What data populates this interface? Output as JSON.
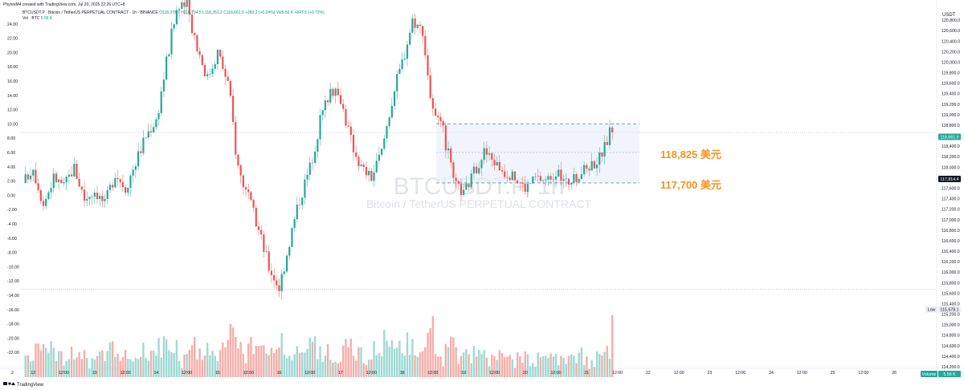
{
  "watermark_top": "PhyresM4 created with TradingView.com, Jul 20, 2025 22:26 UTC+8",
  "header": {
    "line1_symbol": "BTCUSDT.P · Bitcoin / TetherUS PERPETUAL CONTRACT · 1h · BINANCE",
    "ohlc": "O118,378.7 H118,794.5 L118,351.2 C118,661.9 +283.2 (+0.24%) Vol5.56 K +847.5 (+0.72%)",
    "line2": "Vol · BTC",
    "line2_value": "5.56 K"
  },
  "watermark": {
    "symbol": "BTCUSDT.P, 1h",
    "subtitle": "Bitcoin / TetherUS PERPETUAL CONTRACT"
  },
  "annotations": {
    "upper_label": "118,825 美元",
    "lower_label": "117,700 美元",
    "upper_value": 118825,
    "lower_value": 117700
  },
  "axis_badges": {
    "currency": "USDT",
    "last_price": "118,661.9",
    "bid_price": "117,814.4",
    "low_label": "Low",
    "low_price": "115,678.1",
    "volume_label": "Volume",
    "volume_value": "5.56 K"
  },
  "footer": {
    "brand": "TradingView"
  },
  "colors": {
    "up": "#26a69a",
    "down": "#ef5350",
    "vol_up": "#9fd9d2",
    "vol_down": "#f5aeaa",
    "annotation": "#f7931a",
    "guide": "#6a8cc4"
  },
  "chart_data": {
    "type": "candlestick",
    "interval": "1h",
    "y_right": {
      "min": 114200,
      "max": 121000,
      "ticks": [
        114200,
        114400,
        114600,
        114800,
        115000,
        115200,
        115400,
        115600,
        115800,
        116000,
        116200,
        116400,
        116600,
        116800,
        117000,
        117200,
        117400,
        117600,
        117800,
        118000,
        118200,
        118400,
        118600,
        118800,
        119000,
        119200,
        119400,
        119600,
        119800,
        120000,
        120200,
        120400,
        120600,
        120800
      ],
      "tick_labels": [
        "114,200.0",
        "114,400.0",
        "114,600.0",
        "114,800.0",
        "115,000.0",
        "115,200.0",
        "115,400.0",
        "115,600.0",
        "115,800.0",
        "116,000.0",
        "116,200.0",
        "116,400.0",
        "116,600.0",
        "116,800.0",
        "117,000.0",
        "117,200.0",
        "117,400.0",
        "117,600.0",
        "117,800.0",
        "118,000.0",
        "118,200.0",
        "118,400.0",
        "118,600.0",
        "118,800.0",
        "119,000.0",
        "119,200.0",
        "119,400.0",
        "119,600.0",
        "119,800.0",
        "120,000.0",
        "120,200.0",
        "120,400.0",
        "120,600.0",
        "120,800.0"
      ]
    },
    "y_left": {
      "min": -24,
      "max": 26,
      "ticks": [
        -22,
        -20,
        -18,
        -16,
        -14,
        -12,
        -10,
        -8,
        -6,
        -4,
        -2,
        0,
        2,
        4,
        6,
        8,
        10,
        12,
        14,
        16,
        18,
        20,
        22,
        24
      ],
      "tick_labels": [
        "-22.00",
        "-20.00",
        "-18.00",
        "-16.00",
        "-14.00",
        "-12.00",
        "-10.00",
        "-8.00",
        "-6.00",
        "-4.00",
        "-2.00",
        "0.00",
        "2.00",
        "4.00",
        "6.00",
        "8.00",
        "10.00",
        "12.00",
        "14.00",
        "16.00",
        "18.00",
        "20.00",
        "22.00",
        "24.00"
      ]
    },
    "x_axis": {
      "first_hour": 44,
      "last_hour": 274,
      "ticks": [
        {
          "hour": 48,
          "label": "12"
        },
        {
          "hour": 60,
          "label": "12:00"
        },
        {
          "hour": 72,
          "label": "13"
        },
        {
          "hour": 84,
          "label": "12:00"
        },
        {
          "hour": 96,
          "label": "14"
        },
        {
          "hour": 108,
          "label": "12:00"
        },
        {
          "hour": 120,
          "label": "15"
        },
        {
          "hour": 132,
          "label": "12:00"
        },
        {
          "hour": 144,
          "label": "16"
        },
        {
          "hour": 156,
          "label": "12:00"
        },
        {
          "hour": 168,
          "label": "17"
        },
        {
          "hour": 180,
          "label": "12:00"
        },
        {
          "hour": 192,
          "label": "18"
        },
        {
          "hour": 204,
          "label": "12:00"
        },
        {
          "hour": 216,
          "label": "19"
        },
        {
          "hour": 228,
          "label": "12:00"
        },
        {
          "hour": 240,
          "label": "20"
        },
        {
          "hour": 252,
          "label": "12:00"
        },
        {
          "hour": 264,
          "label": "21"
        },
        {
          "hour": 276,
          "label": "12:00"
        },
        {
          "hour": 288,
          "label": "22"
        },
        {
          "hour": 300,
          "label": "12:00"
        },
        {
          "hour": 312,
          "label": "23"
        },
        {
          "hour": 324,
          "label": "12:00"
        },
        {
          "hour": 336,
          "label": "24"
        },
        {
          "hour": 348,
          "label": "12:00"
        },
        {
          "hour": 360,
          "label": "25"
        },
        {
          "hour": 372,
          "label": "12:00"
        },
        {
          "hour": 384,
          "label": "26"
        },
        {
          "hour": 396,
          "label": "12:00"
        }
      ],
      "left_edge_label": "2"
    },
    "volume_max": 6.6,
    "close_path": [
      [
        44,
        117700
      ],
      [
        48,
        118000
      ],
      [
        52,
        117300
      ],
      [
        56,
        117800
      ],
      [
        60,
        117650
      ],
      [
        64,
        118000
      ],
      [
        68,
        117400
      ],
      [
        72,
        117550
      ],
      [
        76,
        117300
      ],
      [
        80,
        117900
      ],
      [
        84,
        117600
      ],
      [
        88,
        118100
      ],
      [
        92,
        118600
      ],
      [
        96,
        118900
      ],
      [
        100,
        120000
      ],
      [
        104,
        121000
      ],
      [
        108,
        121100
      ],
      [
        112,
        120300
      ],
      [
        116,
        119700
      ],
      [
        120,
        120200
      ],
      [
        124,
        119600
      ],
      [
        128,
        118000
      ],
      [
        132,
        117400
      ],
      [
        136,
        116800
      ],
      [
        140,
        116100
      ],
      [
        144,
        115700
      ],
      [
        148,
        116600
      ],
      [
        152,
        117400
      ],
      [
        156,
        118000
      ],
      [
        160,
        118900
      ],
      [
        164,
        119500
      ],
      [
        168,
        119300
      ],
      [
        172,
        118500
      ],
      [
        176,
        118000
      ],
      [
        180,
        117800
      ],
      [
        184,
        118300
      ],
      [
        188,
        119300
      ],
      [
        192,
        120000
      ],
      [
        196,
        120800
      ],
      [
        200,
        120600
      ],
      [
        204,
        119000
      ],
      [
        208,
        118700
      ],
      [
        212,
        117700
      ],
      [
        216,
        117500
      ],
      [
        220,
        117900
      ],
      [
        224,
        118300
      ],
      [
        228,
        118100
      ],
      [
        232,
        117900
      ],
      [
        236,
        117800
      ],
      [
        240,
        117600
      ],
      [
        244,
        117800
      ],
      [
        248,
        117750
      ],
      [
        252,
        117900
      ],
      [
        256,
        117700
      ],
      [
        260,
        117800
      ],
      [
        264,
        118000
      ],
      [
        268,
        118100
      ],
      [
        271,
        118380
      ],
      [
        273,
        118662
      ]
    ],
    "legend": "none"
  }
}
